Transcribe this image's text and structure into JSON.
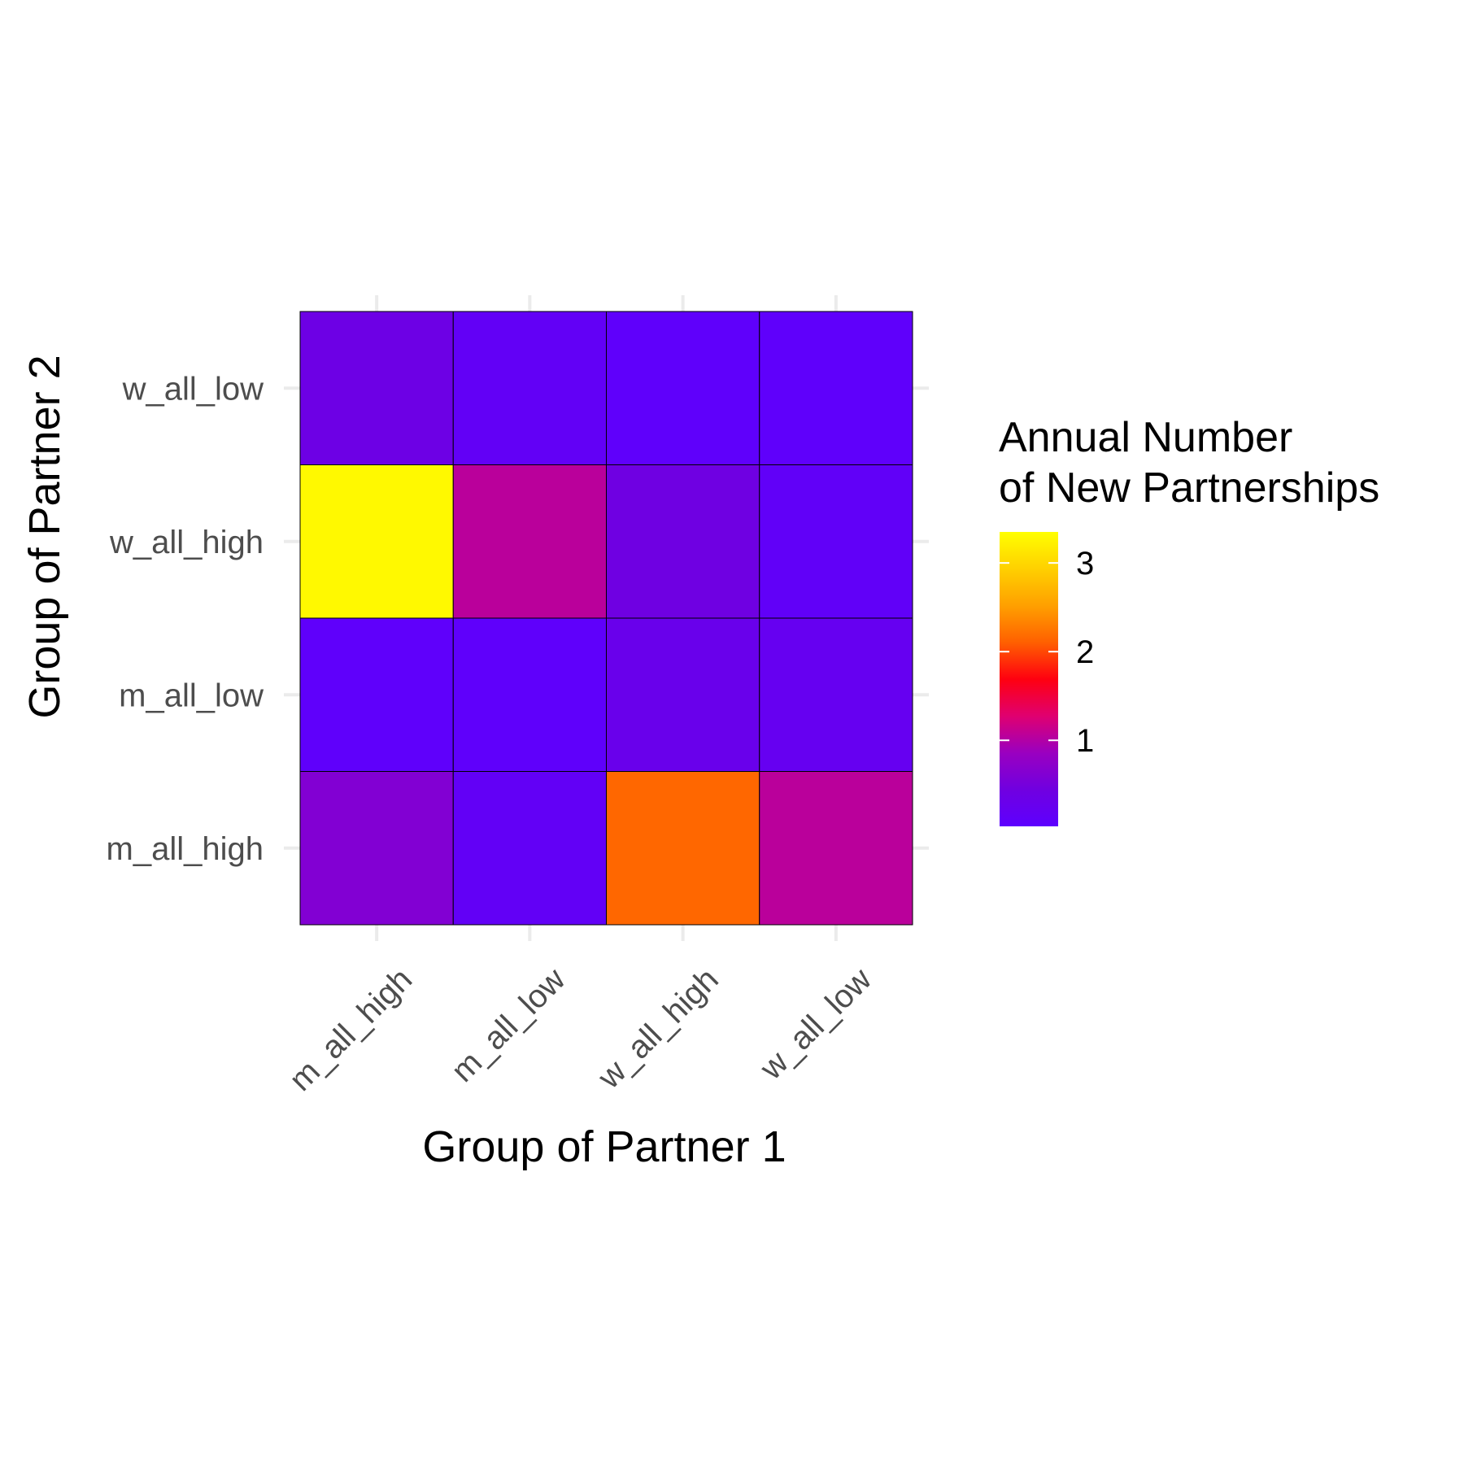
{
  "chart_data": {
    "type": "heatmap",
    "title": "",
    "xlabel": "Group of Partner 1",
    "ylabel": "Group of Partner 2",
    "x_categories": [
      "m_all_high",
      "m_all_low",
      "w_all_high",
      "w_all_low"
    ],
    "y_categories": [
      "m_all_high",
      "m_all_low",
      "w_all_high",
      "w_all_low"
    ],
    "values": [
      [
        0.62,
        0.08,
        3.3,
        0.38
      ],
      [
        0.15,
        0.08,
        1.05,
        0.15
      ],
      [
        2.15,
        0.3,
        0.42,
        0.08
      ],
      [
        1.05,
        0.22,
        0.12,
        0.08
      ]
    ],
    "legend": {
      "title_lines": [
        "Annual Number",
        "of New Partnerships"
      ],
      "ticks": [
        1,
        2,
        3
      ],
      "tick_labels": [
        "1",
        "2",
        "3"
      ],
      "range": [
        0.03,
        3.35
      ],
      "placement": "right"
    },
    "colors": {
      "scale": [
        "#5d00ff",
        "#7000e0",
        "#9a00c0",
        "#e00070",
        "#ff0010",
        "#ff6000",
        "#ffa000",
        "#ffd000",
        "#ffff00"
      ],
      "grid": "#ebebeb",
      "tile_border": "#000000"
    }
  }
}
